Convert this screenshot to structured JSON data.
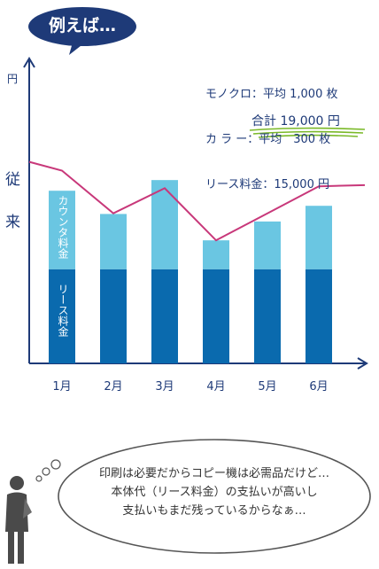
{
  "badge": {
    "text": "例えば…"
  },
  "unit_label": "円",
  "side_label": {
    "line1": "従",
    "line2": "来"
  },
  "info_lines": [
    "モノクロ：平均 1,000 枚",
    "カ ラ ー：平均　300 枚",
    "リース料金：15,000 円"
  ],
  "total": "合計 19,000 円",
  "bubble_lines": [
    "印刷は必要だからコピー機は必需品だけど…",
    "本体代（リース料金）の支払いが高いし",
    "支払いもまだ残っているからなぁ…"
  ],
  "colors": {
    "lease": "#0a6aae",
    "counter": "#6ac6e2",
    "line": "#c8387a",
    "axis": "#1e3a78",
    "badge": "#1e3a78",
    "underline": "#7ab928"
  },
  "chart_data": {
    "type": "bar",
    "categories": [
      "1月",
      "2月",
      "3月",
      "4月",
      "5月",
      "6月"
    ],
    "series": [
      {
        "name": "リース料金",
        "values": [
          15000,
          15000,
          15000,
          15000,
          15000,
          15000
        ]
      },
      {
        "name": "カウンタ料金",
        "values": [
          12500,
          8800,
          14200,
          4600,
          7600,
          10100
        ]
      }
    ],
    "line_values": [
      30700,
      23900,
      27900,
      19600,
      23900,
      28200
    ],
    "line_extents": [
      32100,
      28400
    ],
    "ylim": [
      0,
      48000
    ],
    "ylabel": "円",
    "bar_labels": {
      "lease": "リース料金",
      "counter": "カウンタ料金"
    }
  }
}
